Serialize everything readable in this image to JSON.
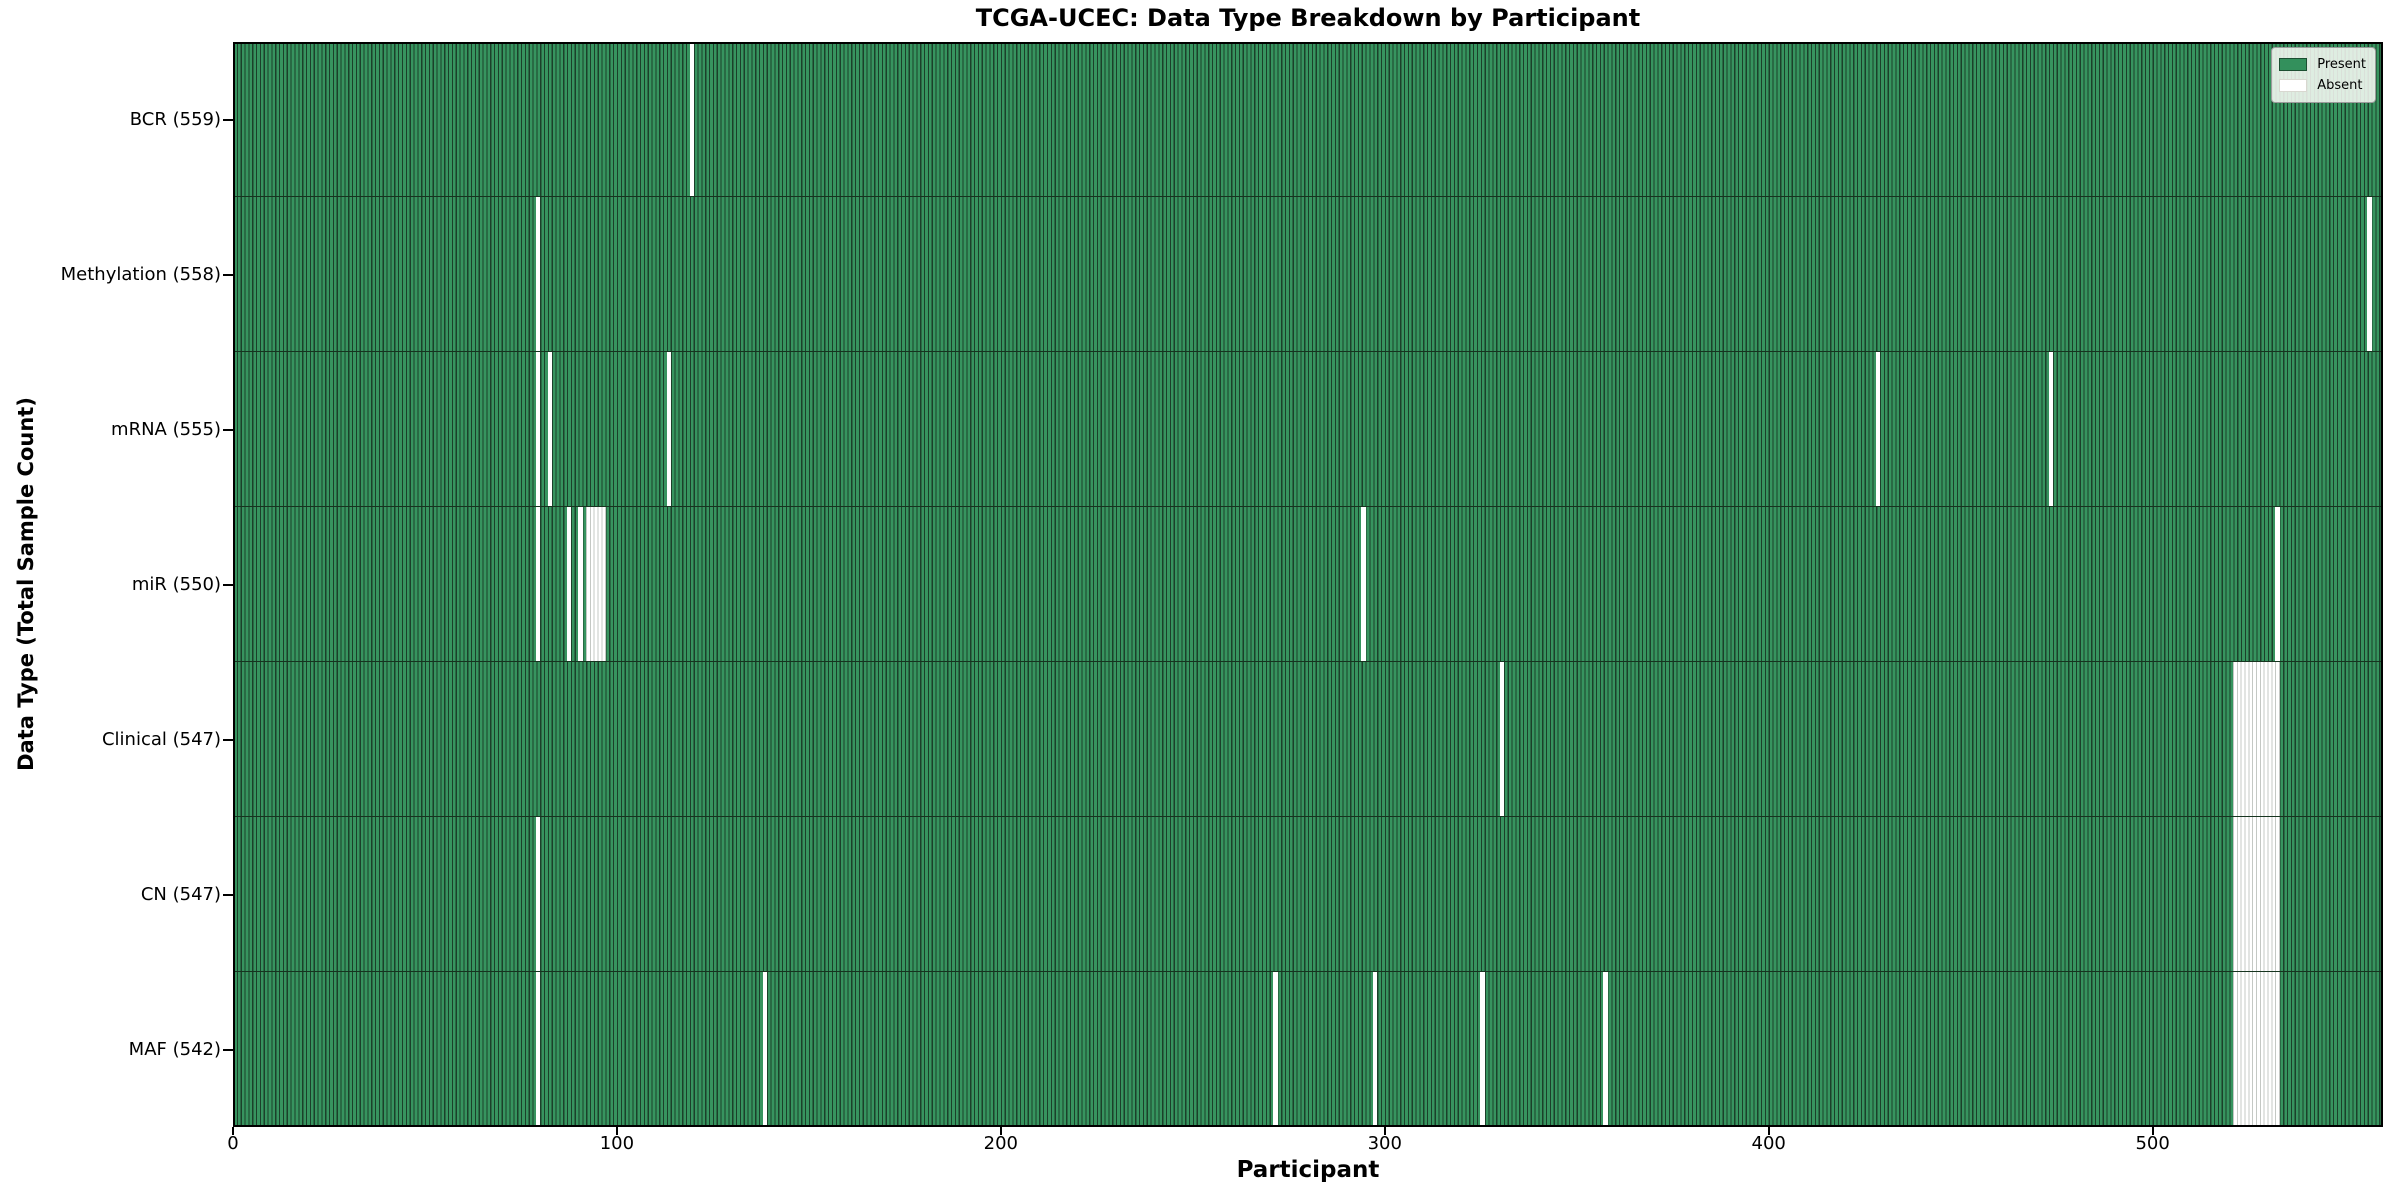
{
  "chart_data": {
    "type": "heatmap",
    "title": "TCGA-UCEC: Data Type Breakdown by Participant",
    "xlabel": "Participant",
    "ylabel": "Data Type (Total Sample Count)",
    "x_axis": {
      "ticks": [
        0,
        100,
        200,
        300,
        400,
        500
      ],
      "min": 0,
      "max": 560
    },
    "n_participants": 560,
    "grid": false,
    "legend": {
      "position": "upper right",
      "entries": [
        {
          "key": "present",
          "label": "Present",
          "color": "#33905c"
        },
        {
          "key": "absent",
          "label": "Absent",
          "color": "#ffffff"
        }
      ]
    },
    "rows": [
      {
        "key": "BCR",
        "label": "BCR (559)",
        "total_sample_count": 559,
        "absent_participants": [
          119
        ]
      },
      {
        "key": "Methylation",
        "label": "Methylation (558)",
        "total_sample_count": 558,
        "absent_participants": [
          79,
          556
        ]
      },
      {
        "key": "mRNA",
        "label": "mRNA (555)",
        "total_sample_count": 555,
        "absent_participants": [
          79,
          82,
          113,
          428,
          473
        ]
      },
      {
        "key": "miR",
        "label": "miR (550)",
        "total_sample_count": 550,
        "absent_participants": [
          79,
          87,
          90,
          92,
          93,
          94,
          95,
          96,
          294,
          532
        ]
      },
      {
        "key": "Clinical",
        "label": "Clinical (547)",
        "total_sample_count": 547,
        "absent_participants": [
          330,
          521,
          522,
          523,
          524,
          525,
          526,
          527,
          528,
          529,
          530,
          531,
          532
        ]
      },
      {
        "key": "CN",
        "label": "CN (547)",
        "total_sample_count": 547,
        "absent_participants": [
          79,
          521,
          522,
          523,
          524,
          525,
          526,
          527,
          528,
          529,
          530,
          531,
          532
        ]
      },
      {
        "key": "MAF",
        "label": "MAF (542)",
        "total_sample_count": 542,
        "absent_participants": [
          79,
          138,
          271,
          297,
          325,
          357,
          521,
          522,
          523,
          524,
          525,
          526,
          527,
          528,
          529,
          530,
          531,
          532
        ]
      }
    ],
    "colors": {
      "present_fill": "#37945f",
      "bar_edge": "#1b402a",
      "row_separator": "#16341f",
      "absent_fill": "#ffffff",
      "absent_edge": "#c4c8c4",
      "axis": "#000000"
    }
  }
}
